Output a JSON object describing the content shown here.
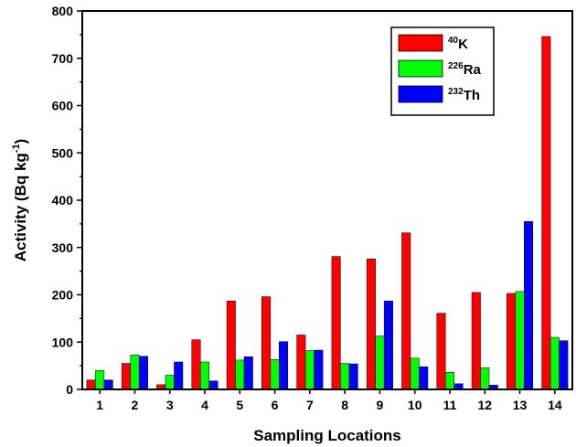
{
  "chart_data": {
    "type": "bar",
    "xlabel": "Sampling Locations",
    "ylabel": {
      "prefix": "Activity (Bq kg",
      "sup": "-1",
      "suffix": ")"
    },
    "categories": [
      "1",
      "2",
      "3",
      "4",
      "5",
      "6",
      "7",
      "8",
      "9",
      "10",
      "11",
      "12",
      "13",
      "14"
    ],
    "ylim": [
      0,
      800
    ],
    "yticks": [
      0,
      100,
      200,
      300,
      400,
      500,
      600,
      700,
      800
    ],
    "grid": false,
    "legend_position": "top-right",
    "series": [
      {
        "name": "40K",
        "sup": "40",
        "base": "K",
        "color": "#ff0000",
        "values": [
          20,
          55,
          10,
          105,
          187,
          196,
          115,
          281,
          276,
          331,
          161,
          205,
          203,
          746
        ]
      },
      {
        "name": "226Ra",
        "sup": "226",
        "base": "Ra",
        "color": "#00ff00",
        "values": [
          40,
          73,
          30,
          58,
          62,
          63,
          82,
          55,
          113,
          66,
          36,
          46,
          207,
          110
        ]
      },
      {
        "name": "232Th",
        "sup": "232",
        "base": "Th",
        "color": "#0000ff",
        "values": [
          20,
          70,
          58,
          18,
          69,
          101,
          83,
          54,
          187,
          48,
          12,
          9,
          355,
          103
        ]
      }
    ]
  }
}
